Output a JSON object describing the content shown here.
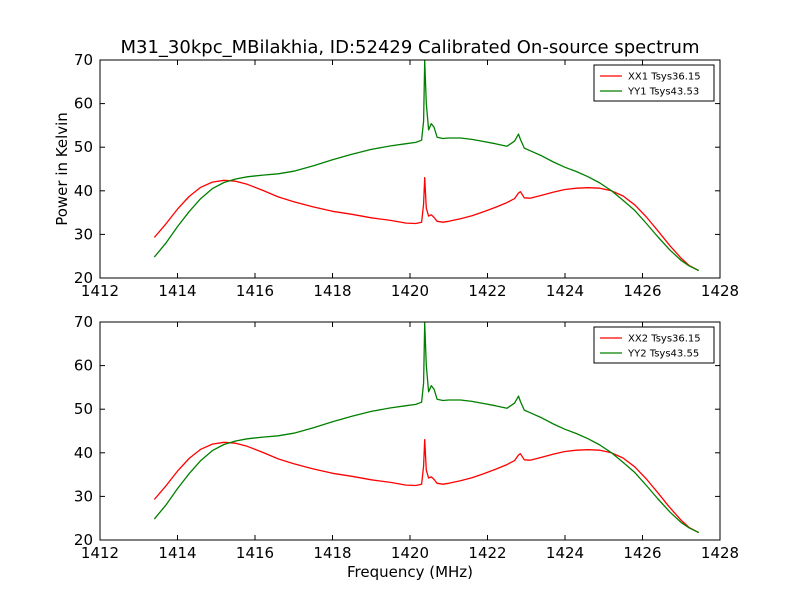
{
  "figure": {
    "title": "M31_30kpc_MBilakhia, ID:52429 Calibrated On-source spectrum",
    "ylabel": "Power in Kelvin",
    "xlabel": "Frequency (MHz)"
  },
  "chart_data": [
    {
      "type": "line",
      "title": "M31_30kpc_MBilakhia, ID:52429 Calibrated On-source spectrum",
      "xlabel": "",
      "ylabel": "Power in Kelvin",
      "xlim": [
        1412,
        1428
      ],
      "ylim": [
        20,
        70
      ],
      "xticks": [
        1412,
        1414,
        1416,
        1418,
        1420,
        1422,
        1424,
        1426,
        1428
      ],
      "yticks": [
        20,
        30,
        40,
        50,
        60,
        70
      ],
      "grid": false,
      "legend": "top-right",
      "series": [
        {
          "name": "XX1 Tsys36.15",
          "color": "#ff0000",
          "x": [
            1413.4,
            1413.7,
            1414.0,
            1414.3,
            1414.6,
            1414.9,
            1415.2,
            1415.5,
            1415.8,
            1416.2,
            1416.6,
            1417.0,
            1417.5,
            1418.0,
            1418.5,
            1419.0,
            1419.5,
            1419.9,
            1420.15,
            1420.3,
            1420.35,
            1420.38,
            1420.42,
            1420.48,
            1420.55,
            1420.62,
            1420.7,
            1420.85,
            1421.0,
            1421.3,
            1421.6,
            1421.9,
            1422.2,
            1422.5,
            1422.7,
            1422.8,
            1422.85,
            1422.95,
            1423.1,
            1423.4,
            1423.7,
            1424.0,
            1424.3,
            1424.6,
            1424.9,
            1425.2,
            1425.5,
            1425.8,
            1426.1,
            1426.4,
            1426.7,
            1427.0,
            1427.2,
            1427.45
          ],
          "values": [
            29.3,
            32.4,
            35.8,
            38.7,
            40.8,
            42.0,
            42.4,
            42.2,
            41.5,
            40.1,
            38.6,
            37.5,
            36.3,
            35.3,
            34.6,
            33.8,
            33.2,
            32.6,
            32.5,
            32.8,
            37.0,
            43.0,
            36.0,
            34.2,
            34.5,
            33.9,
            33.0,
            32.8,
            33.0,
            33.6,
            34.3,
            35.2,
            36.2,
            37.3,
            38.2,
            39.5,
            39.8,
            38.4,
            38.3,
            39.0,
            39.7,
            40.3,
            40.6,
            40.7,
            40.6,
            40.0,
            38.8,
            36.8,
            34.0,
            30.8,
            27.5,
            24.5,
            22.9,
            21.7
          ]
        },
        {
          "name": "YY1 Tsys43.53",
          "color": "#008000",
          "x": [
            1413.4,
            1413.7,
            1414.0,
            1414.3,
            1414.6,
            1414.9,
            1415.2,
            1415.5,
            1415.8,
            1416.2,
            1416.6,
            1417.0,
            1417.5,
            1418.0,
            1418.5,
            1419.0,
            1419.5,
            1419.9,
            1420.15,
            1420.3,
            1420.35,
            1420.38,
            1420.42,
            1420.48,
            1420.55,
            1420.62,
            1420.7,
            1420.85,
            1421.0,
            1421.3,
            1421.6,
            1421.9,
            1422.2,
            1422.5,
            1422.7,
            1422.8,
            1422.85,
            1422.95,
            1423.1,
            1423.4,
            1423.7,
            1424.0,
            1424.3,
            1424.6,
            1424.9,
            1425.2,
            1425.5,
            1425.8,
            1426.1,
            1426.4,
            1426.7,
            1427.0,
            1427.2,
            1427.45
          ],
          "values": [
            24.8,
            28.0,
            31.8,
            35.2,
            38.2,
            40.5,
            41.9,
            42.7,
            43.2,
            43.6,
            43.9,
            44.5,
            45.7,
            47.1,
            48.4,
            49.5,
            50.3,
            50.8,
            51.1,
            51.6,
            56.0,
            69.8,
            60.0,
            54.0,
            55.4,
            54.6,
            52.3,
            52.0,
            52.1,
            52.1,
            51.8,
            51.3,
            50.8,
            50.2,
            51.4,
            53.0,
            51.8,
            49.8,
            49.2,
            48.0,
            46.6,
            45.4,
            44.4,
            43.2,
            41.8,
            40.0,
            37.8,
            35.5,
            32.5,
            29.4,
            26.5,
            24.0,
            22.8,
            21.7
          ]
        }
      ]
    },
    {
      "type": "line",
      "title": "",
      "xlabel": "Frequency (MHz)",
      "ylabel": "",
      "xlim": [
        1412,
        1428
      ],
      "ylim": [
        20,
        70
      ],
      "xticks": [
        1412,
        1414,
        1416,
        1418,
        1420,
        1422,
        1424,
        1426,
        1428
      ],
      "yticks": [
        20,
        30,
        40,
        50,
        60,
        70
      ],
      "grid": false,
      "legend": "top-right",
      "series": [
        {
          "name": "XX2 Tsys36.15",
          "color": "#ff0000",
          "x": [
            1413.4,
            1413.7,
            1414.0,
            1414.3,
            1414.6,
            1414.9,
            1415.2,
            1415.5,
            1415.8,
            1416.2,
            1416.6,
            1417.0,
            1417.5,
            1418.0,
            1418.5,
            1419.0,
            1419.5,
            1419.9,
            1420.15,
            1420.3,
            1420.35,
            1420.38,
            1420.42,
            1420.48,
            1420.55,
            1420.62,
            1420.7,
            1420.85,
            1421.0,
            1421.3,
            1421.6,
            1421.9,
            1422.2,
            1422.5,
            1422.7,
            1422.8,
            1422.85,
            1422.95,
            1423.1,
            1423.4,
            1423.7,
            1424.0,
            1424.3,
            1424.6,
            1424.9,
            1425.2,
            1425.5,
            1425.8,
            1426.1,
            1426.4,
            1426.7,
            1427.0,
            1427.2,
            1427.45
          ],
          "values": [
            29.3,
            32.4,
            35.8,
            38.7,
            40.8,
            42.0,
            42.4,
            42.2,
            41.5,
            40.1,
            38.6,
            37.5,
            36.3,
            35.3,
            34.6,
            33.8,
            33.2,
            32.6,
            32.5,
            32.8,
            37.0,
            43.0,
            36.0,
            34.2,
            34.5,
            33.9,
            33.0,
            32.8,
            33.0,
            33.6,
            34.3,
            35.2,
            36.2,
            37.3,
            38.2,
            39.5,
            39.8,
            38.4,
            38.3,
            39.0,
            39.7,
            40.3,
            40.6,
            40.7,
            40.6,
            40.0,
            38.8,
            36.8,
            34.0,
            30.8,
            27.5,
            24.5,
            22.9,
            21.7
          ]
        },
        {
          "name": "YY2 Tsys43.55",
          "color": "#008000",
          "x": [
            1413.4,
            1413.7,
            1414.0,
            1414.3,
            1414.6,
            1414.9,
            1415.2,
            1415.5,
            1415.8,
            1416.2,
            1416.6,
            1417.0,
            1417.5,
            1418.0,
            1418.5,
            1419.0,
            1419.5,
            1419.9,
            1420.15,
            1420.3,
            1420.35,
            1420.38,
            1420.42,
            1420.48,
            1420.55,
            1420.62,
            1420.7,
            1420.85,
            1421.0,
            1421.3,
            1421.6,
            1421.9,
            1422.2,
            1422.5,
            1422.7,
            1422.8,
            1422.85,
            1422.95,
            1423.1,
            1423.4,
            1423.7,
            1424.0,
            1424.3,
            1424.6,
            1424.9,
            1425.2,
            1425.5,
            1425.8,
            1426.1,
            1426.4,
            1426.7,
            1427.0,
            1427.2,
            1427.45
          ],
          "values": [
            24.8,
            28.0,
            31.8,
            35.2,
            38.2,
            40.5,
            41.9,
            42.7,
            43.2,
            43.6,
            43.9,
            44.5,
            45.7,
            47.1,
            48.4,
            49.5,
            50.3,
            50.8,
            51.1,
            51.6,
            56.0,
            69.8,
            60.0,
            54.0,
            55.4,
            54.6,
            52.3,
            52.0,
            52.1,
            52.1,
            51.8,
            51.3,
            50.8,
            50.2,
            51.4,
            53.0,
            51.8,
            49.8,
            49.2,
            48.0,
            46.6,
            45.4,
            44.4,
            43.2,
            41.8,
            40.0,
            37.8,
            35.5,
            32.5,
            29.4,
            26.5,
            24.0,
            22.8,
            21.7
          ]
        }
      ]
    }
  ]
}
